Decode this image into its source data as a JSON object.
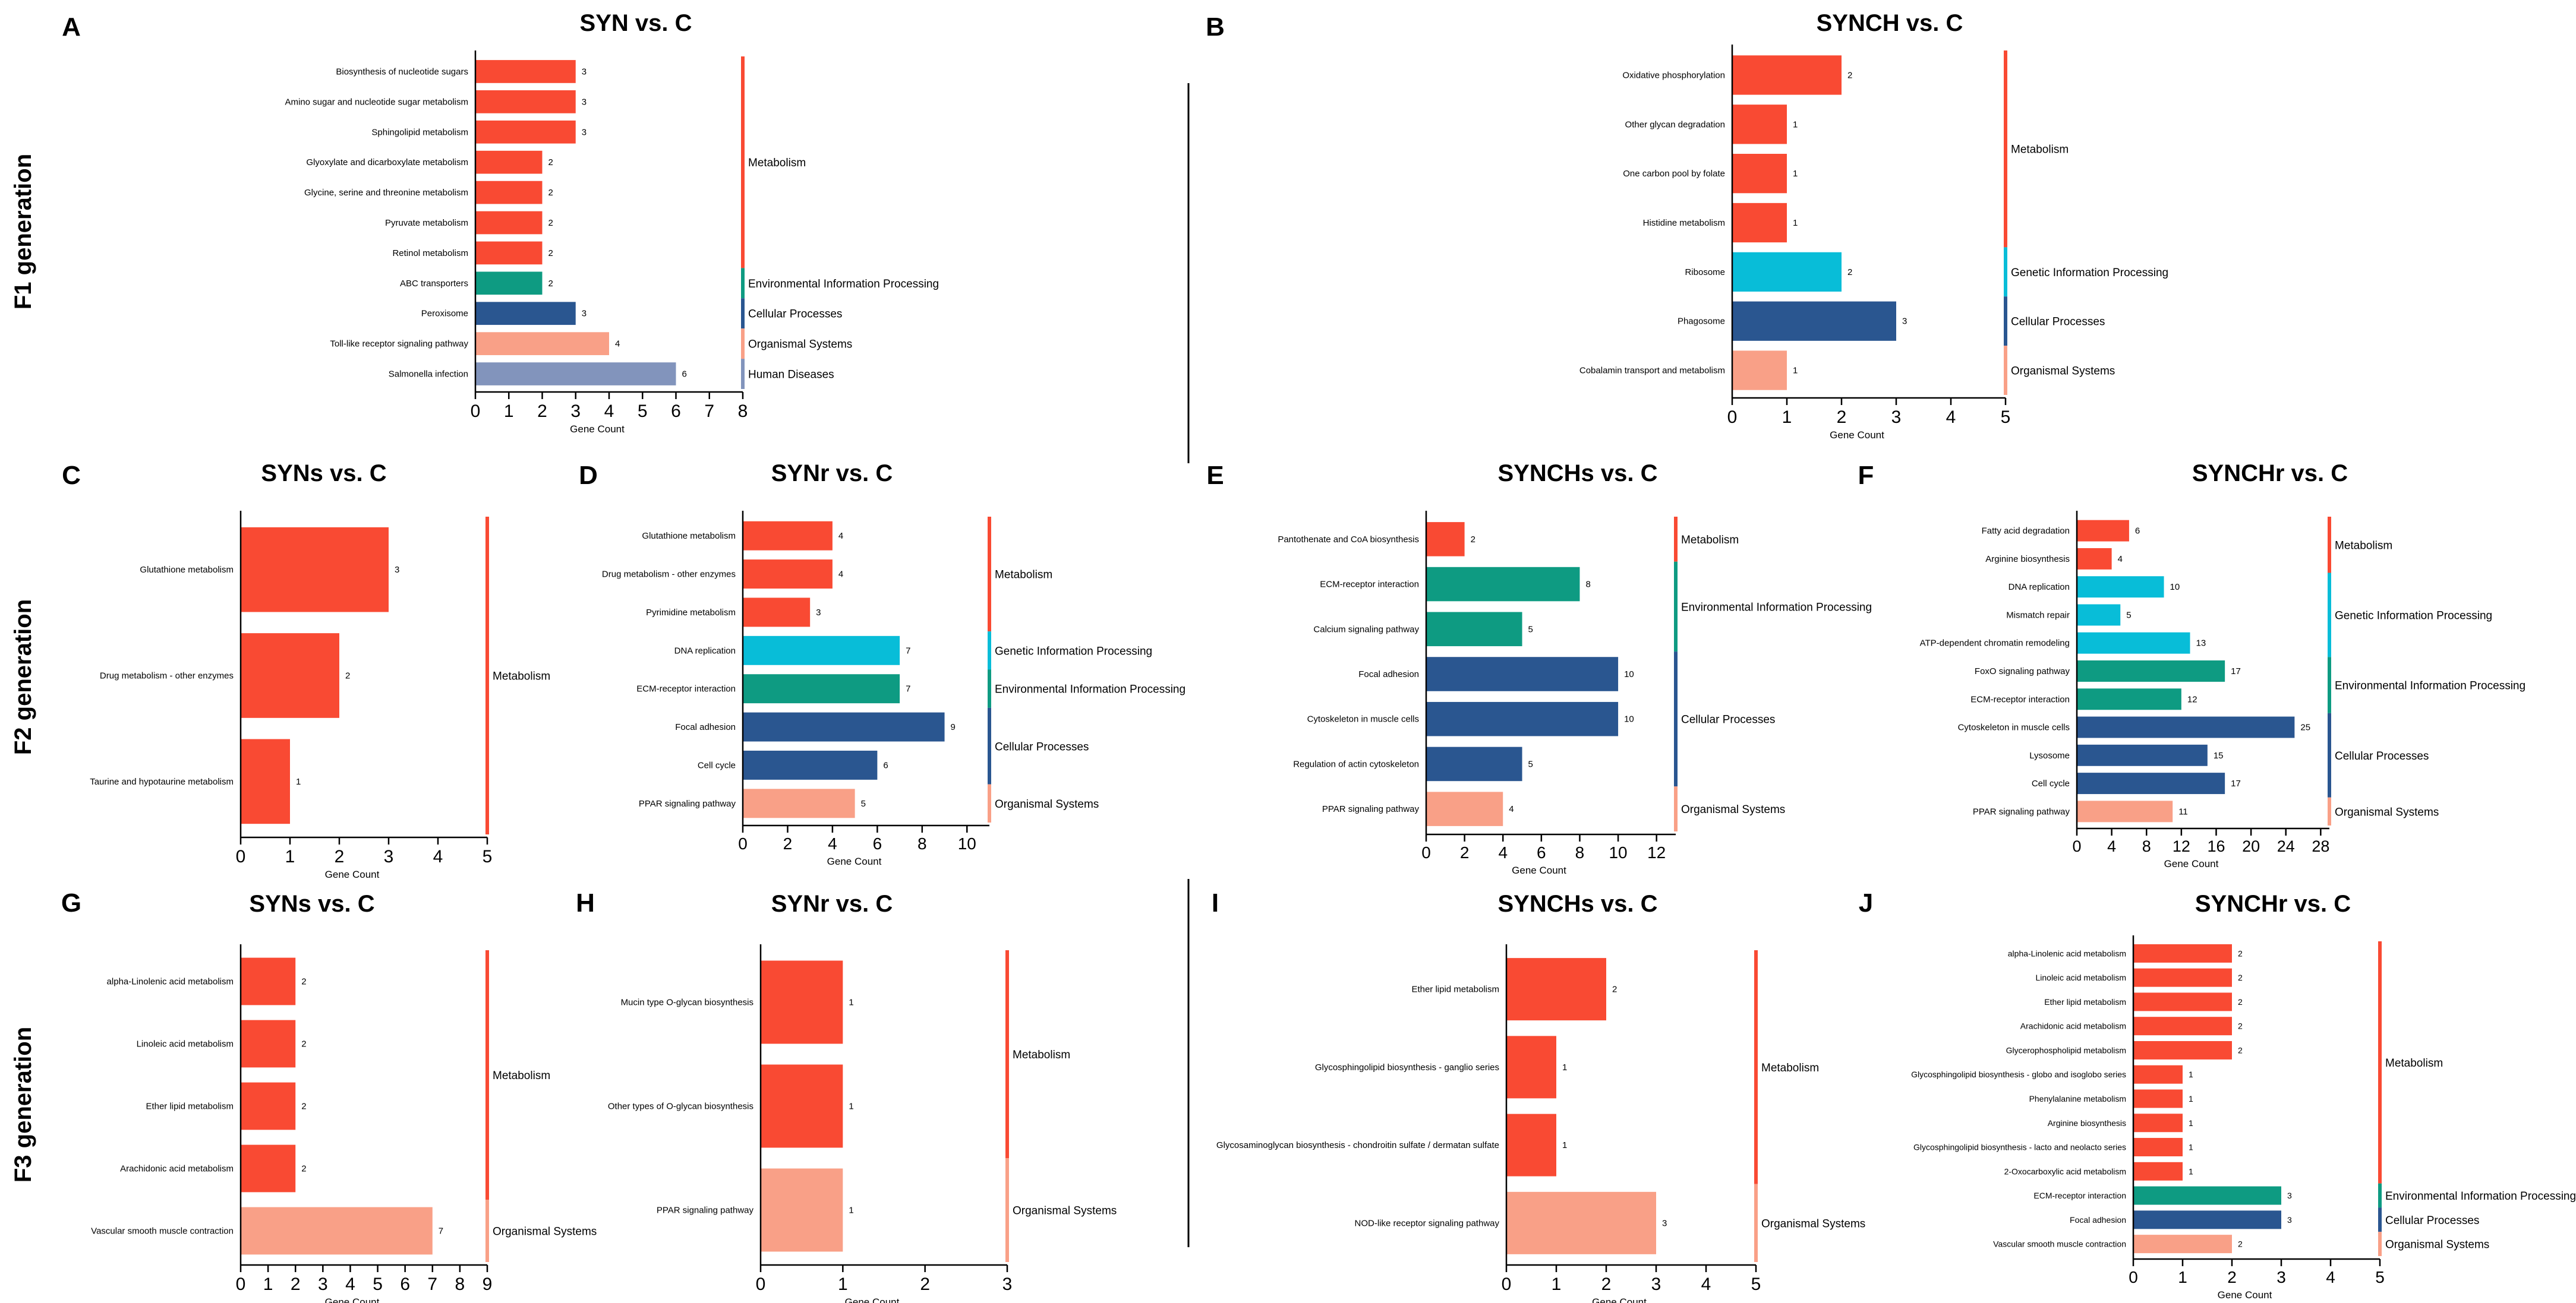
{
  "figure": {
    "generation_labels": [
      "F1 generation",
      "F2 generation",
      "F3 generation"
    ]
  },
  "colors": {
    "Metabolism": "#F94A33",
    "Environmental Information Processing": "#0E9B82",
    "Cellular Processes": "#2A5690",
    "Organismal Systems": "#F9A087",
    "Human Diseases": "#8294BC",
    "Genetic Information Processing": "#08BDD8"
  },
  "chart_data": [
    {
      "panel": "A",
      "title": "SYN vs. C",
      "type": "bar",
      "orientation": "horizontal",
      "xlabel": "Gene Count",
      "xlim": [
        0,
        8
      ],
      "xticks": [
        0,
        1,
        2,
        3,
        4,
        5,
        6,
        7,
        8
      ],
      "categories": [
        "Biosynthesis of nucleotide sugars",
        "Amino sugar and nucleotide sugar metabolism",
        "Sphingolipid metabolism",
        "Glyoxylate and dicarboxylate metabolism",
        "Glycine, serine and threonine metabolism",
        "Pyruvate metabolism",
        "Retinol metabolism",
        "ABC transporters",
        "Peroxisome",
        "Toll-like receptor signaling pathway",
        "Salmonella infection"
      ],
      "values": [
        3,
        3,
        3,
        2,
        2,
        2,
        2,
        2,
        3,
        4,
        6
      ],
      "classes": [
        "Metabolism",
        "Metabolism",
        "Metabolism",
        "Metabolism",
        "Metabolism",
        "Metabolism",
        "Metabolism",
        "Environmental Information Processing",
        "Cellular Processes",
        "Organismal Systems",
        "Human Diseases"
      ]
    },
    {
      "panel": "B",
      "title": "SYNCH vs. C",
      "type": "bar",
      "orientation": "horizontal",
      "xlabel": "Gene Count",
      "xlim": [
        0,
        5
      ],
      "xticks": [
        0,
        1,
        2,
        3,
        4,
        5
      ],
      "categories": [
        "Oxidative phosphorylation",
        "Other glycan degradation",
        "One carbon pool by folate",
        "Histidine metabolism",
        "Ribosome",
        "Phagosome",
        "Cobalamin transport and metabolism"
      ],
      "values": [
        2,
        1,
        1,
        1,
        2,
        3,
        1
      ],
      "classes": [
        "Metabolism",
        "Metabolism",
        "Metabolism",
        "Metabolism",
        "Genetic Information Processing",
        "Cellular Processes",
        "Organismal Systems"
      ]
    },
    {
      "panel": "C",
      "title": "SYNs vs. C",
      "type": "bar",
      "orientation": "horizontal",
      "xlabel": "Gene Count",
      "xlim": [
        0,
        5
      ],
      "xticks": [
        0,
        1,
        2,
        3,
        4,
        5
      ],
      "categories": [
        "Glutathione metabolism",
        "Drug metabolism - other enzymes",
        "Taurine and hypotaurine metabolism"
      ],
      "values": [
        3,
        2,
        1
      ],
      "classes": [
        "Metabolism",
        "Metabolism",
        "Metabolism"
      ]
    },
    {
      "panel": "D",
      "title": "SYNr vs. C",
      "type": "bar",
      "orientation": "horizontal",
      "xlabel": "Gene Count",
      "xlim": [
        0,
        11
      ],
      "xticks": [
        0,
        2,
        4,
        6,
        8,
        10
      ],
      "categories": [
        "Glutathione metabolism",
        "Drug metabolism - other enzymes",
        "Pyrimidine metabolism",
        "DNA replication",
        "ECM-receptor interaction",
        "Focal adhesion",
        "Cell cycle",
        "PPAR signaling pathway"
      ],
      "values": [
        4,
        4,
        3,
        7,
        7,
        9,
        6,
        5
      ],
      "classes": [
        "Metabolism",
        "Metabolism",
        "Metabolism",
        "Genetic Information Processing",
        "Environmental Information Processing",
        "Cellular Processes",
        "Cellular Processes",
        "Organismal Systems"
      ]
    },
    {
      "panel": "E",
      "title": "SYNCHs vs. C",
      "type": "bar",
      "orientation": "horizontal",
      "xlabel": "Gene Count",
      "xlim": [
        0,
        13
      ],
      "xticks": [
        0,
        2,
        4,
        6,
        8,
        10,
        12
      ],
      "categories": [
        "Pantothenate and CoA biosynthesis",
        "ECM-receptor interaction",
        "Calcium signaling pathway",
        "Focal adhesion",
        "Cytoskeleton in muscle cells",
        "Regulation of actin cytoskeleton",
        "PPAR signaling pathway"
      ],
      "values": [
        2,
        8,
        5,
        10,
        10,
        5,
        4
      ],
      "classes": [
        "Metabolism",
        "Environmental Information Processing",
        "Environmental Information Processing",
        "Cellular Processes",
        "Cellular Processes",
        "Cellular Processes",
        "Organismal Systems"
      ]
    },
    {
      "panel": "F",
      "title": "SYNCHr vs. C",
      "type": "bar",
      "orientation": "horizontal",
      "xlabel": "Gene Count",
      "xlim": [
        0,
        29
      ],
      "xticks": [
        0,
        4,
        8,
        12,
        16,
        20,
        24,
        28
      ],
      "categories": [
        "Fatty acid degradation",
        "Arginine biosynthesis",
        "DNA replication",
        "Mismatch repair",
        "ATP-dependent chromatin remodeling",
        "FoxO signaling pathway",
        "ECM-receptor interaction",
        "Cytoskeleton in muscle cells",
        "Lysosome",
        "Cell cycle",
        "PPAR signaling pathway"
      ],
      "values": [
        6,
        4,
        10,
        5,
        13,
        17,
        12,
        25,
        15,
        17,
        11
      ],
      "classes": [
        "Metabolism",
        "Metabolism",
        "Genetic Information Processing",
        "Genetic Information Processing",
        "Genetic Information Processing",
        "Environmental Information Processing",
        "Environmental Information Processing",
        "Cellular Processes",
        "Cellular Processes",
        "Cellular Processes",
        "Organismal Systems"
      ]
    },
    {
      "panel": "G",
      "title": "SYNs vs. C",
      "type": "bar",
      "orientation": "horizontal",
      "xlabel": "Gene Count",
      "xlim": [
        0,
        9
      ],
      "xticks": [
        0,
        1,
        2,
        3,
        4,
        5,
        6,
        7,
        8,
        9
      ],
      "categories": [
        "alpha-Linolenic acid metabolism",
        "Linoleic acid metabolism",
        "Ether lipid metabolism",
        "Arachidonic acid metabolism",
        "Vascular smooth muscle contraction"
      ],
      "values": [
        2,
        2,
        2,
        2,
        7
      ],
      "classes": [
        "Metabolism",
        "Metabolism",
        "Metabolism",
        "Metabolism",
        "Organismal Systems"
      ]
    },
    {
      "panel": "H",
      "title": "SYNr vs. C",
      "type": "bar",
      "orientation": "horizontal",
      "xlabel": "Gene Count",
      "xlim": [
        0,
        3
      ],
      "xticks": [
        0,
        1,
        2,
        3
      ],
      "categories": [
        "Mucin type O-glycan biosynthesis",
        "Other types of O-glycan biosynthesis",
        "PPAR signaling pathway"
      ],
      "values": [
        1,
        1,
        1
      ],
      "classes": [
        "Metabolism",
        "Metabolism",
        "Organismal Systems"
      ]
    },
    {
      "panel": "I",
      "title": "SYNCHs vs. C",
      "type": "bar",
      "orientation": "horizontal",
      "xlabel": "Gene Count",
      "xlim": [
        0,
        5
      ],
      "xticks": [
        0,
        1,
        2,
        3,
        4,
        5
      ],
      "categories": [
        "Ether lipid metabolism",
        "Glycosphingolipid biosynthesis - ganglio series",
        "Glycosaminoglycan biosynthesis - chondroitin sulfate / dermatan sulfate",
        "NOD-like receptor signaling pathway"
      ],
      "values": [
        2,
        1,
        1,
        3
      ],
      "classes": [
        "Metabolism",
        "Metabolism",
        "Metabolism",
        "Organismal Systems"
      ]
    },
    {
      "panel": "J",
      "title": "SYNCHr vs. C",
      "type": "bar",
      "orientation": "horizontal",
      "xlabel": "Gene Count",
      "xlim": [
        0,
        5
      ],
      "xticks": [
        0,
        1,
        2,
        3,
        4,
        5
      ],
      "categories": [
        "alpha-Linolenic acid metabolism",
        "Linoleic acid metabolism",
        "Ether lipid metabolism",
        "Arachidonic acid metabolism",
        "Glycerophospholipid metabolism",
        "Glycosphingolipid biosynthesis - globo and isoglobo series",
        "Phenylalanine metabolism",
        "Arginine biosynthesis",
        "Glycosphingolipid biosynthesis - lacto and neolacto series",
        "2-Oxocarboxylic acid metabolism",
        "ECM-receptor interaction",
        "Focal adhesion",
        "Vascular smooth muscle contraction"
      ],
      "values": [
        2,
        2,
        2,
        2,
        2,
        1,
        1,
        1,
        1,
        1,
        3,
        3,
        2
      ],
      "classes": [
        "Metabolism",
        "Metabolism",
        "Metabolism",
        "Metabolism",
        "Metabolism",
        "Metabolism",
        "Metabolism",
        "Metabolism",
        "Metabolism",
        "Metabolism",
        "Environmental Information Processing",
        "Cellular Processes",
        "Organismal Systems"
      ]
    }
  ]
}
